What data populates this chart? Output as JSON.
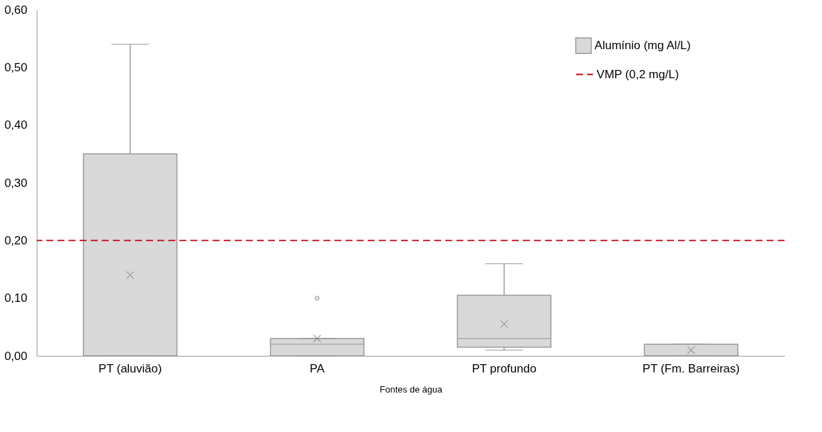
{
  "chart_data": {
    "type": "box",
    "xlabel": "Fontes de água",
    "categories": [
      "PT (aluvião)",
      "PA",
      "PT profundo",
      "PT (Fm. Barreiras)"
    ],
    "series": [
      {
        "name": "Alumínio (mg Al/L)",
        "color": "#d9d9d9",
        "boxes": [
          {
            "low": 0,
            "q1": 0,
            "median": 0,
            "q3": 0.35,
            "high": 0.54,
            "mean": 0.14
          },
          {
            "low": 0,
            "q1": 0,
            "median": 0.02,
            "q3": 0.03,
            "high": 0.03,
            "mean": 0.03,
            "outliers": [
              0.1
            ]
          },
          {
            "low": 0.01,
            "q1": 0.015,
            "median": 0.03,
            "q3": 0.105,
            "high": 0.16,
            "mean": 0.055
          },
          {
            "low": 0,
            "q1": 0,
            "median": 0,
            "q3": 0.02,
            "high": 0.02,
            "mean": 0.01
          }
        ]
      }
    ],
    "ylim": [
      0,
      0.6
    ],
    "yticks": [
      {
        "value": 0,
        "label": "0,00"
      },
      {
        "value": 0.1,
        "label": "0,10"
      },
      {
        "value": 0.2,
        "label": "0,20"
      },
      {
        "value": 0.3,
        "label": "0,30"
      },
      {
        "value": 0.4,
        "label": "0,40"
      },
      {
        "value": 0.5,
        "label": "0,50"
      },
      {
        "value": 0.6,
        "label": "0,60"
      }
    ],
    "ref_lines": [
      {
        "axis": "y",
        "value": 0.2,
        "label": "VMP (0,2 mg/L)",
        "color": "#c0000b",
        "line_style": "dashed"
      }
    ],
    "grid": false,
    "legend": "top right",
    "marker": "cross"
  }
}
